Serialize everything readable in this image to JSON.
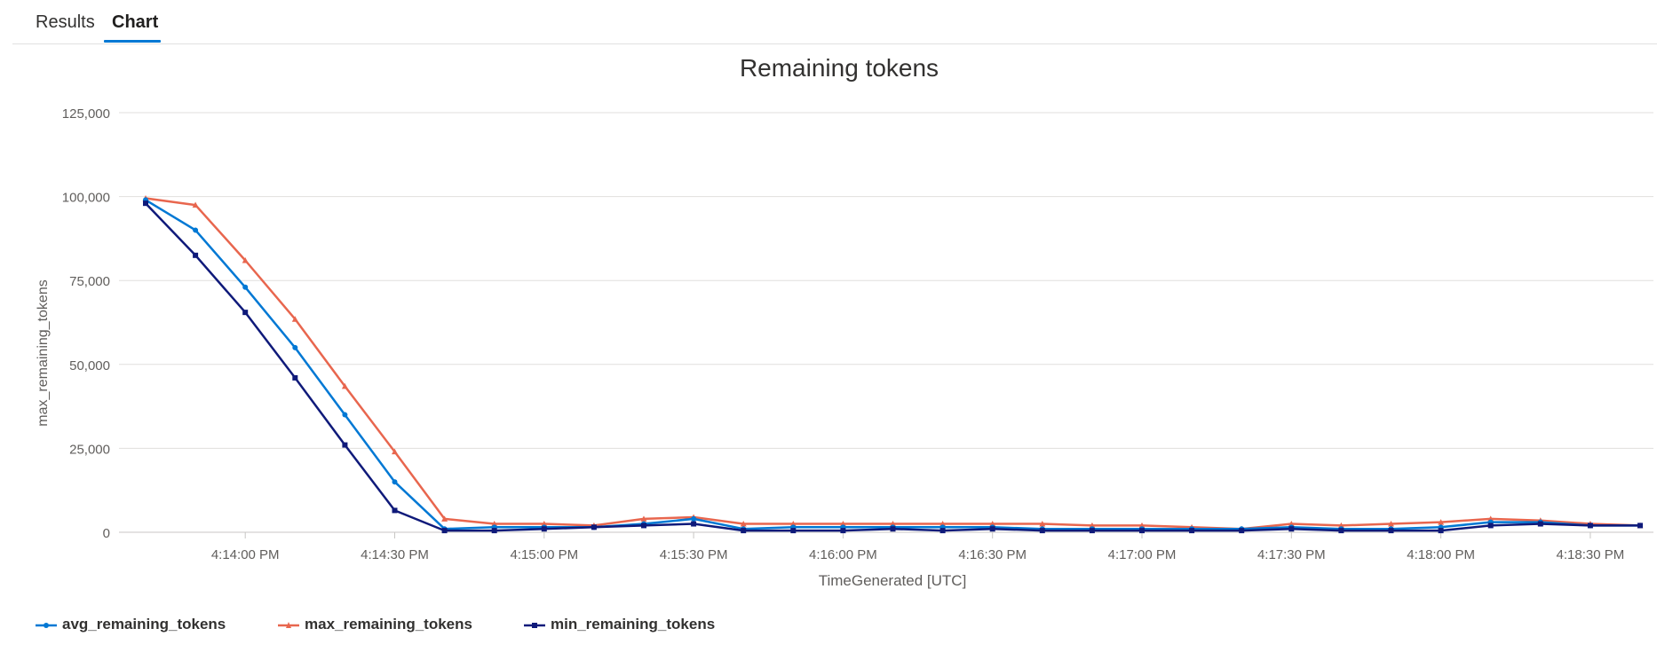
{
  "tabs": [
    {
      "label": "Results",
      "active": false
    },
    {
      "label": "Chart",
      "active": true
    }
  ],
  "accent_color": "#0078d4",
  "chart_data": {
    "type": "line",
    "title": "Remaining tokens",
    "xlabel": "TimeGenerated [UTC]",
    "ylabel": "max_remaining_tokens",
    "ylim": [
      0,
      125000
    ],
    "yticks": [
      0,
      25000,
      50000,
      75000,
      100000,
      125000
    ],
    "ytick_labels": [
      "0",
      "25,000",
      "50,000",
      "75,000",
      "100,000",
      "125,000"
    ],
    "xtick_labels": [
      "4:14:00 PM",
      "4:14:30 PM",
      "4:15:00 PM",
      "4:15:30 PM",
      "4:16:00 PM",
      "4:16:30 PM",
      "4:17:00 PM",
      "4:17:30 PM",
      "4:18:00 PM",
      "4:18:30 PM"
    ],
    "x": [
      "4:13:40 PM",
      "4:13:50 PM",
      "4:14:00 PM",
      "4:14:10 PM",
      "4:14:20 PM",
      "4:14:30 PM",
      "4:14:40 PM",
      "4:14:50 PM",
      "4:15:00 PM",
      "4:15:10 PM",
      "4:15:20 PM",
      "4:15:30 PM",
      "4:15:40 PM",
      "4:15:50 PM",
      "4:16:00 PM",
      "4:16:10 PM",
      "4:16:20 PM",
      "4:16:30 PM",
      "4:16:40 PM",
      "4:16:50 PM",
      "4:17:00 PM",
      "4:17:10 PM",
      "4:17:20 PM",
      "4:17:30 PM",
      "4:17:40 PM",
      "4:17:50 PM",
      "4:18:00 PM",
      "4:18:10 PM",
      "4:18:20 PM",
      "4:18:30 PM",
      "4:18:40 PM"
    ],
    "grid": true,
    "legend_position": "bottom-left",
    "series": [
      {
        "name": "avg_remaining_tokens",
        "color": "#0078d4",
        "values": [
          99000,
          90000,
          73000,
          55000,
          35000,
          15000,
          1000,
          1500,
          1500,
          1500,
          2500,
          4000,
          1000,
          1500,
          1500,
          1500,
          1500,
          1500,
          1000,
          1000,
          1000,
          1000,
          1000,
          1500,
          1000,
          1000,
          1500,
          3000,
          3000,
          2000,
          2000
        ]
      },
      {
        "name": "max_remaining_tokens",
        "color": "#e8664e",
        "values": [
          99500,
          97500,
          81000,
          63500,
          43500,
          24000,
          4000,
          2500,
          2500,
          2000,
          4000,
          4500,
          2500,
          2500,
          2500,
          2500,
          2500,
          2500,
          2500,
          2000,
          2000,
          1500,
          1000,
          2500,
          2000,
          2500,
          3000,
          4000,
          3500,
          2500,
          2000
        ]
      },
      {
        "name": "min_remaining_tokens",
        "color": "#0f1a7a",
        "values": [
          98000,
          82500,
          65500,
          46000,
          26000,
          6500,
          500,
          500,
          1000,
          1500,
          2000,
          2500,
          500,
          500,
          500,
          1000,
          500,
          1000,
          500,
          500,
          500,
          500,
          500,
          1000,
          500,
          500,
          500,
          2000,
          2500,
          2000,
          2000
        ]
      }
    ]
  }
}
